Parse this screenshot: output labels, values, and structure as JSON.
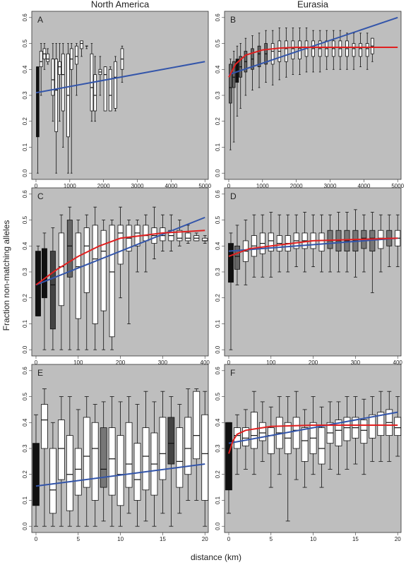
{
  "ylabel": "Fraction non-matching alleles",
  "xlabel": "distance (km)",
  "chart_data": [
    {
      "type": "box",
      "title": "North America",
      "label": "A",
      "background": "#bebebe",
      "xlim": [
        -125,
        5100
      ],
      "ylim": [
        -0.024,
        0.624
      ],
      "xticks": [
        0,
        1000,
        2000,
        3000,
        4000,
        5000
      ],
      "yticks": [
        {
          "value": 0,
          "label": "0.0"
        },
        0.1,
        0.2,
        0.3,
        0.4,
        0.5,
        0.6
      ],
      "x": [
        50,
        150,
        250,
        350,
        500,
        600,
        700,
        800,
        950,
        1050,
        1200,
        1350,
        1500,
        1650,
        1750,
        1900,
        2050,
        2200,
        2350,
        2550
      ],
      "whisker_low": [
        0,
        0.3,
        0.4,
        0.42,
        0.2,
        0,
        0.2,
        0.1,
        0,
        0,
        0.3,
        0.45,
        0.48,
        0.2,
        0.2,
        0.3,
        0.24,
        0.24,
        0.24,
        0.35
      ],
      "q1": [
        0.14,
        0.41,
        0.44,
        0.43,
        0.3,
        0.16,
        0.38,
        0.24,
        0.14,
        0.4,
        0.42,
        0.48,
        0.49,
        0.24,
        0.24,
        0.38,
        0.24,
        0.24,
        0.25,
        0.4
      ],
      "median": [
        0.3,
        0.43,
        0.46,
        0.44,
        0.36,
        0.32,
        0.41,
        0.38,
        0.3,
        0.44,
        0.45,
        0.5,
        0.49,
        0.33,
        0.3,
        0.39,
        0.38,
        0.3,
        0.37,
        0.44
      ],
      "q3": [
        0.41,
        0.47,
        0.48,
        0.46,
        0.44,
        0.44,
        0.43,
        0.46,
        0.46,
        0.48,
        0.49,
        0.51,
        0.49,
        0.46,
        0.38,
        0.4,
        0.41,
        0.4,
        0.43,
        0.48
      ],
      "whisker_high": [
        0.41,
        0.5,
        0.5,
        0.48,
        0.5,
        0.5,
        0.5,
        0.5,
        0.5,
        0.5,
        0.5,
        0.51,
        0.49,
        0.5,
        0.45,
        0.45,
        0.41,
        0.41,
        0.45,
        0.49
      ],
      "colors": [
        "#111111",
        "#ffffff",
        "#ffffff",
        "#ffffff",
        "#ffffff",
        "#ffffff",
        "#ffffff",
        "#ffffff",
        "#ffffff",
        "#ffffff",
        "#ffffff",
        "#ffffff",
        "#ffffff",
        "#ffffff",
        "#ffffff",
        "#ffffff",
        "#ffffff",
        "#ffffff",
        "#ffffff",
        "#ffffff"
      ],
      "lines": [
        {
          "color": "#3355aa",
          "x": [
            0,
            5000
          ],
          "y": [
            0.31,
            0.43
          ]
        }
      ]
    },
    {
      "type": "box",
      "title": "Eurasia",
      "label": "B",
      "background": "#bebebe",
      "xlim": [
        -125,
        5100
      ],
      "ylim": [
        -0.024,
        0.624
      ],
      "xticks": [
        0,
        1000,
        2000,
        3000,
        4000,
        5000
      ],
      "yticks": [
        {
          "value": 0,
          "label": "0.0"
        },
        0.1,
        0.2,
        0.3,
        0.4,
        0.5,
        0.6
      ],
      "x": [
        50,
        150,
        250,
        350,
        500,
        700,
        900,
        1100,
        1300,
        1500,
        1700,
        1900,
        2100,
        2300,
        2500,
        2700,
        2900,
        3100,
        3300,
        3500,
        3700,
        3900,
        4100,
        4250
      ],
      "whisker_low": [
        0.09,
        0.12,
        0.22,
        0.25,
        0.3,
        0.32,
        0.33,
        0.35,
        0.34,
        0.36,
        0.37,
        0.38,
        0.38,
        0.39,
        0.39,
        0.39,
        0.4,
        0.4,
        0.4,
        0.4,
        0.4,
        0.41,
        0.4,
        0.43
      ],
      "q1": [
        0.27,
        0.33,
        0.35,
        0.37,
        0.39,
        0.4,
        0.41,
        0.42,
        0.42,
        0.43,
        0.43,
        0.44,
        0.44,
        0.45,
        0.45,
        0.45,
        0.45,
        0.45,
        0.45,
        0.45,
        0.45,
        0.45,
        0.45,
        0.46
      ],
      "median": [
        0.33,
        0.37,
        0.39,
        0.41,
        0.43,
        0.44,
        0.46,
        0.46,
        0.47,
        0.47,
        0.48,
        0.48,
        0.48,
        0.48,
        0.48,
        0.48,
        0.48,
        0.48,
        0.48,
        0.48,
        0.48,
        0.48,
        0.48,
        0.49
      ],
      "q3": [
        0.42,
        0.43,
        0.44,
        0.45,
        0.47,
        0.48,
        0.49,
        0.5,
        0.5,
        0.51,
        0.51,
        0.51,
        0.51,
        0.51,
        0.51,
        0.51,
        0.51,
        0.51,
        0.51,
        0.51,
        0.5,
        0.5,
        0.5,
        0.52
      ],
      "whisker_high": [
        0.44,
        0.47,
        0.49,
        0.5,
        0.52,
        0.53,
        0.54,
        0.55,
        0.55,
        0.56,
        0.56,
        0.56,
        0.56,
        0.56,
        0.55,
        0.55,
        0.55,
        0.55,
        0.55,
        0.54,
        0.54,
        0.54,
        0.54,
        0.52
      ],
      "colors": [
        "#666666",
        "#666666",
        "#111111",
        "#666666",
        "#666666",
        "#666666",
        "#666666",
        "#666666",
        "#ffffff",
        "#ffffff",
        "#ffffff",
        "#ffffff",
        "#ffffff",
        "#ffffff",
        "#ffffff",
        "#ffffff",
        "#ffffff",
        "#ffffff",
        "#ffffff",
        "#ffffff",
        "#ffffff",
        "#ffffff",
        "#ffffff",
        "#ffffff"
      ],
      "lines": [
        {
          "color": "#3355aa",
          "x": [
            0,
            5000
          ],
          "y": [
            0.38,
            0.6
          ]
        },
        {
          "color": "#e02020",
          "x": [
            0,
            200,
            500,
            1000,
            1500,
            2000,
            5000
          ],
          "y": [
            0.37,
            0.42,
            0.455,
            0.475,
            0.482,
            0.485,
            0.485
          ]
        }
      ]
    },
    {
      "type": "box",
      "label": "C",
      "background": "#bebebe",
      "xlim": [
        -10,
        408
      ],
      "ylim": [
        -0.024,
        0.624
      ],
      "xticks": [
        0,
        100,
        200,
        300,
        400
      ],
      "yticks": [
        {
          "value": 0,
          "label": "0.0"
        },
        0.1,
        0.2,
        0.3,
        0.4,
        0.5,
        0.6
      ],
      "x": [
        5,
        20,
        40,
        60,
        80,
        100,
        120,
        140,
        160,
        180,
        200,
        220,
        240,
        260,
        280,
        300,
        320,
        340,
        360,
        380,
        400
      ],
      "whisker_low": [
        0.13,
        0,
        0,
        0,
        0,
        0,
        0,
        0,
        0,
        0,
        0.2,
        0.1,
        0.3,
        0.3,
        0.35,
        0.38,
        0.38,
        0.4,
        0.41,
        0.42,
        0.41
      ],
      "q1": [
        0.13,
        0.2,
        0.08,
        0.17,
        0.28,
        0.12,
        0.22,
        0.1,
        0.15,
        0.05,
        0.33,
        0.38,
        0.4,
        0.42,
        0.41,
        0.42,
        0.42,
        0.42,
        0.42,
        0.42,
        0.42
      ],
      "median": [
        0.25,
        0.3,
        0.25,
        0.32,
        0.4,
        0.32,
        0.4,
        0.35,
        0.38,
        0.3,
        0.45,
        0.43,
        0.45,
        0.44,
        0.44,
        0.44,
        0.44,
        0.43,
        0.43,
        0.43,
        0.42
      ],
      "q3": [
        0.38,
        0.39,
        0.38,
        0.45,
        0.5,
        0.45,
        0.47,
        0.48,
        0.46,
        0.48,
        0.48,
        0.48,
        0.48,
        0.48,
        0.47,
        0.47,
        0.46,
        0.46,
        0.45,
        0.44,
        0.43
      ],
      "whisker_high": [
        0.4,
        0.45,
        0.47,
        0.52,
        0.55,
        0.5,
        0.52,
        0.55,
        0.5,
        0.5,
        0.55,
        0.5,
        0.5,
        0.52,
        0.55,
        0.52,
        0.52,
        0.5,
        0.48,
        0.45,
        0.44
      ],
      "colors": [
        "#111111",
        "#111111",
        "#444444",
        "#ffffff",
        "#666666",
        "#ffffff",
        "#ffffff",
        "#ffffff",
        "#ffffff",
        "#ffffff",
        "#ffffff",
        "#ffffff",
        "#ffffff",
        "#ffffff",
        "#ffffff",
        "#ffffff",
        "#ffffff",
        "#ffffff",
        "#ffffff",
        "#ffffff",
        "#ffffff"
      ],
      "lines": [
        {
          "color": "#3355aa",
          "x": [
            0,
            400
          ],
          "y": [
            0.25,
            0.51
          ]
        },
        {
          "color": "#e02020",
          "x": [
            0,
            50,
            100,
            150,
            200,
            250,
            300,
            400
          ],
          "y": [
            0.25,
            0.31,
            0.36,
            0.4,
            0.43,
            0.44,
            0.45,
            0.46
          ]
        }
      ]
    },
    {
      "type": "box",
      "label": "D",
      "background": "#bebebe",
      "xlim": [
        -10,
        408
      ],
      "ylim": [
        -0.024,
        0.624
      ],
      "xticks": [
        0,
        100,
        200,
        300,
        400
      ],
      "yticks": [
        {
          "value": 0,
          "label": "0.0"
        },
        0.1,
        0.2,
        0.3,
        0.4,
        0.5,
        0.6
      ],
      "x": [
        5,
        20,
        40,
        60,
        80,
        100,
        120,
        140,
        160,
        180,
        200,
        220,
        240,
        260,
        280,
        300,
        320,
        340,
        360,
        380,
        400
      ],
      "whisker_low": [
        0,
        0.25,
        0.25,
        0.28,
        0.28,
        0.28,
        0.3,
        0.3,
        0.32,
        0.3,
        0.32,
        0.3,
        0.3,
        0.3,
        0.3,
        0.28,
        0.3,
        0.22,
        0.3,
        0.32,
        0.32
      ],
      "q1": [
        0.26,
        0.31,
        0.34,
        0.36,
        0.37,
        0.38,
        0.38,
        0.38,
        0.39,
        0.39,
        0.39,
        0.38,
        0.39,
        0.38,
        0.38,
        0.38,
        0.39,
        0.38,
        0.39,
        0.4,
        0.4
      ],
      "median": [
        0.33,
        0.36,
        0.38,
        0.4,
        0.41,
        0.42,
        0.41,
        0.41,
        0.42,
        0.42,
        0.42,
        0.42,
        0.42,
        0.42,
        0.42,
        0.42,
        0.43,
        0.43,
        0.43,
        0.43,
        0.43
      ],
      "q3": [
        0.41,
        0.4,
        0.42,
        0.44,
        0.45,
        0.45,
        0.44,
        0.44,
        0.45,
        0.45,
        0.45,
        0.45,
        0.46,
        0.46,
        0.46,
        0.46,
        0.46,
        0.46,
        0.46,
        0.46,
        0.46
      ],
      "whisker_high": [
        0.45,
        0.48,
        0.5,
        0.52,
        0.52,
        0.53,
        0.52,
        0.52,
        0.52,
        0.53,
        0.52,
        0.52,
        0.52,
        0.53,
        0.53,
        0.54,
        0.52,
        0.53,
        0.52,
        0.52,
        0.52
      ],
      "colors": [
        "#111111",
        "#666666",
        "#ffffff",
        "#ffffff",
        "#ffffff",
        "#ffffff",
        "#ffffff",
        "#ffffff",
        "#ffffff",
        "#ffffff",
        "#ffffff",
        "#ffffff",
        "#777777",
        "#777777",
        "#777777",
        "#777777",
        "#777777",
        "#777777",
        "#ffffff",
        "#777777",
        "#ffffff"
      ],
      "lines": [
        {
          "color": "#3355aa",
          "x": [
            0,
            400
          ],
          "y": [
            0.38,
            0.43
          ]
        },
        {
          "color": "#e02020",
          "x": [
            0,
            50,
            100,
            200,
            400
          ],
          "y": [
            0.36,
            0.39,
            0.4,
            0.42,
            0.43
          ]
        }
      ]
    },
    {
      "type": "box",
      "label": "E",
      "background": "#bebebe",
      "xlim": [
        -0.5,
        20.4
      ],
      "ylim": [
        -0.024,
        0.624
      ],
      "xticks": [
        0,
        5,
        10,
        15,
        20
      ],
      "yticks": [
        {
          "value": 0,
          "label": "0.0"
        },
        0.1,
        0.2,
        0.3,
        0.4,
        0.5,
        0.6
      ],
      "x": [
        0,
        1,
        2,
        3,
        4,
        5,
        6,
        7,
        8,
        9,
        10,
        11,
        12,
        13,
        14,
        15,
        16,
        17,
        18,
        19,
        20
      ],
      "whisker_low": [
        0,
        0,
        0,
        0,
        0,
        0,
        0,
        0,
        0.02,
        0,
        0,
        0.05,
        0,
        0.02,
        0,
        0.05,
        0,
        0.05,
        0.1,
        0.1,
        0
      ],
      "q1": [
        0.08,
        0.3,
        0.05,
        0.18,
        0.06,
        0.12,
        0.15,
        0.1,
        0.15,
        0.12,
        0.08,
        0.15,
        0.1,
        0.14,
        0.12,
        0.18,
        0.24,
        0.15,
        0.2,
        0.26,
        0.1
      ],
      "median": [
        0.16,
        0.41,
        0.14,
        0.3,
        0.2,
        0.22,
        0.27,
        0.3,
        0.22,
        0.26,
        0.2,
        0.24,
        0.18,
        0.27,
        0.24,
        0.28,
        0.32,
        0.25,
        0.3,
        0.35,
        0.28
      ],
      "q3": [
        0.32,
        0.47,
        0.3,
        0.41,
        0.35,
        0.3,
        0.42,
        0.4,
        0.38,
        0.38,
        0.35,
        0.4,
        0.32,
        0.38,
        0.36,
        0.42,
        0.42,
        0.38,
        0.42,
        0.52,
        0.43
      ],
      "whisker_high": [
        0.43,
        0.53,
        0.4,
        0.5,
        0.5,
        0.45,
        0.5,
        0.47,
        0.48,
        0.5,
        0.48,
        0.5,
        0.47,
        0.52,
        0.48,
        0.52,
        0.5,
        0.47,
        0.53,
        0.53,
        0.52
      ],
      "colors": [
        "#111111",
        "#ffffff",
        "#ffffff",
        "#ffffff",
        "#ffffff",
        "#ffffff",
        "#ffffff",
        "#ffffff",
        "#777777",
        "#ffffff",
        "#ffffff",
        "#ffffff",
        "#ffffff",
        "#ffffff",
        "#ffffff",
        "#ffffff",
        "#444444",
        "#ffffff",
        "#ffffff",
        "#ffffff",
        "#ffffff"
      ],
      "lines": [
        {
          "color": "#3355aa",
          "x": [
            0,
            20
          ],
          "y": [
            0.155,
            0.24
          ]
        }
      ]
    },
    {
      "type": "box",
      "label": "F",
      "background": "#bebebe",
      "xlim": [
        -0.5,
        20.4
      ],
      "ylim": [
        -0.024,
        0.624
      ],
      "xticks": [
        0,
        5,
        10,
        15,
        20
      ],
      "yticks": [
        {
          "value": 0,
          "label": "0.0"
        },
        0.1,
        0.2,
        0.3,
        0.4,
        0.5,
        0.6
      ],
      "x": [
        0,
        1,
        2,
        3,
        4,
        5,
        6,
        7,
        8,
        9,
        10,
        11,
        12,
        13,
        14,
        15,
        16,
        17,
        18,
        19,
        20
      ],
      "whisker_low": [
        0.05,
        0.2,
        0.22,
        0.2,
        0.25,
        0.15,
        0.2,
        0.02,
        0.18,
        0.15,
        0.2,
        0.15,
        0.22,
        0.2,
        0.22,
        0.24,
        0.2,
        0.25,
        0.25,
        0.25,
        0.27
      ],
      "q1": [
        0.14,
        0.3,
        0.31,
        0.3,
        0.33,
        0.28,
        0.3,
        0.28,
        0.3,
        0.25,
        0.28,
        0.24,
        0.32,
        0.31,
        0.33,
        0.34,
        0.32,
        0.34,
        0.35,
        0.35,
        0.35
      ],
      "median": [
        0.3,
        0.35,
        0.34,
        0.35,
        0.36,
        0.35,
        0.36,
        0.34,
        0.37,
        0.33,
        0.34,
        0.3,
        0.36,
        0.37,
        0.38,
        0.38,
        0.37,
        0.39,
        0.39,
        0.4,
        0.38
      ],
      "q3": [
        0.4,
        0.38,
        0.38,
        0.44,
        0.4,
        0.38,
        0.42,
        0.4,
        0.42,
        0.38,
        0.4,
        0.38,
        0.4,
        0.41,
        0.42,
        0.42,
        0.41,
        0.43,
        0.44,
        0.45,
        0.42
      ],
      "whisker_high": [
        0.4,
        0.43,
        0.45,
        0.52,
        0.48,
        0.46,
        0.5,
        0.5,
        0.52,
        0.45,
        0.5,
        0.46,
        0.48,
        0.48,
        0.5,
        0.5,
        0.49,
        0.5,
        0.52,
        0.52,
        0.5
      ],
      "colors": [
        "#111111",
        "#ffffff",
        "#ffffff",
        "#ffffff",
        "#ffffff",
        "#ffffff",
        "#ffffff",
        "#ffffff",
        "#ffffff",
        "#ffffff",
        "#ffffff",
        "#ffffff",
        "#ffffff",
        "#ffffff",
        "#ffffff",
        "#ffffff",
        "#ffffff",
        "#ffffff",
        "#ffffff",
        "#ffffff",
        "#ffffff"
      ],
      "lines": [
        {
          "color": "#3355aa",
          "x": [
            0,
            20
          ],
          "y": [
            0.32,
            0.44
          ]
        },
        {
          "color": "#e02020",
          "x": [
            0,
            0.5,
            1,
            2,
            5,
            10,
            20
          ],
          "y": [
            0.28,
            0.33,
            0.355,
            0.37,
            0.385,
            0.39,
            0.39
          ]
        }
      ]
    }
  ]
}
